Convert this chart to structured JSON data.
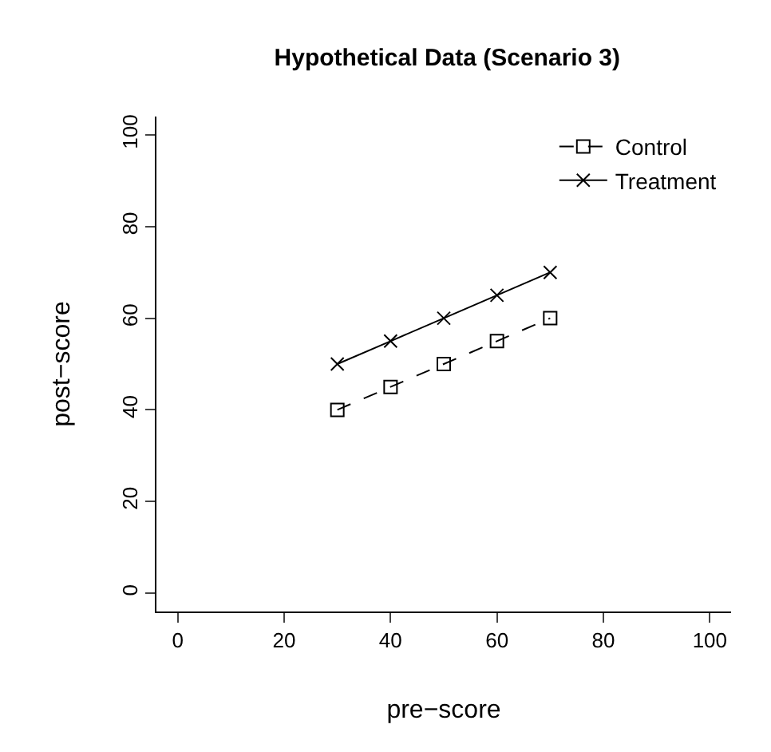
{
  "chart_data": {
    "type": "line",
    "title": "Hypothetical Data (Scenario 3)",
    "xlabel": "pre−score",
    "ylabel": "post−score",
    "x": [
      30,
      40,
      50,
      60,
      70
    ],
    "series": [
      {
        "name": "Control",
        "color": "#000000",
        "values": [
          40,
          45,
          50,
          55,
          60
        ],
        "marker": "square",
        "line_style": "dashed"
      },
      {
        "name": "Treatment",
        "color": "#000000",
        "values": [
          50,
          55,
          60,
          65,
          70
        ],
        "marker": "cross",
        "line_style": "solid"
      }
    ],
    "xlim": [
      -4,
      104
    ],
    "xticks": [
      0,
      20,
      40,
      60,
      80,
      100
    ],
    "ylim": [
      -4,
      104
    ],
    "yticks": [
      0,
      20,
      40,
      60,
      80,
      100
    ],
    "grid": false,
    "legend": "top right"
  }
}
